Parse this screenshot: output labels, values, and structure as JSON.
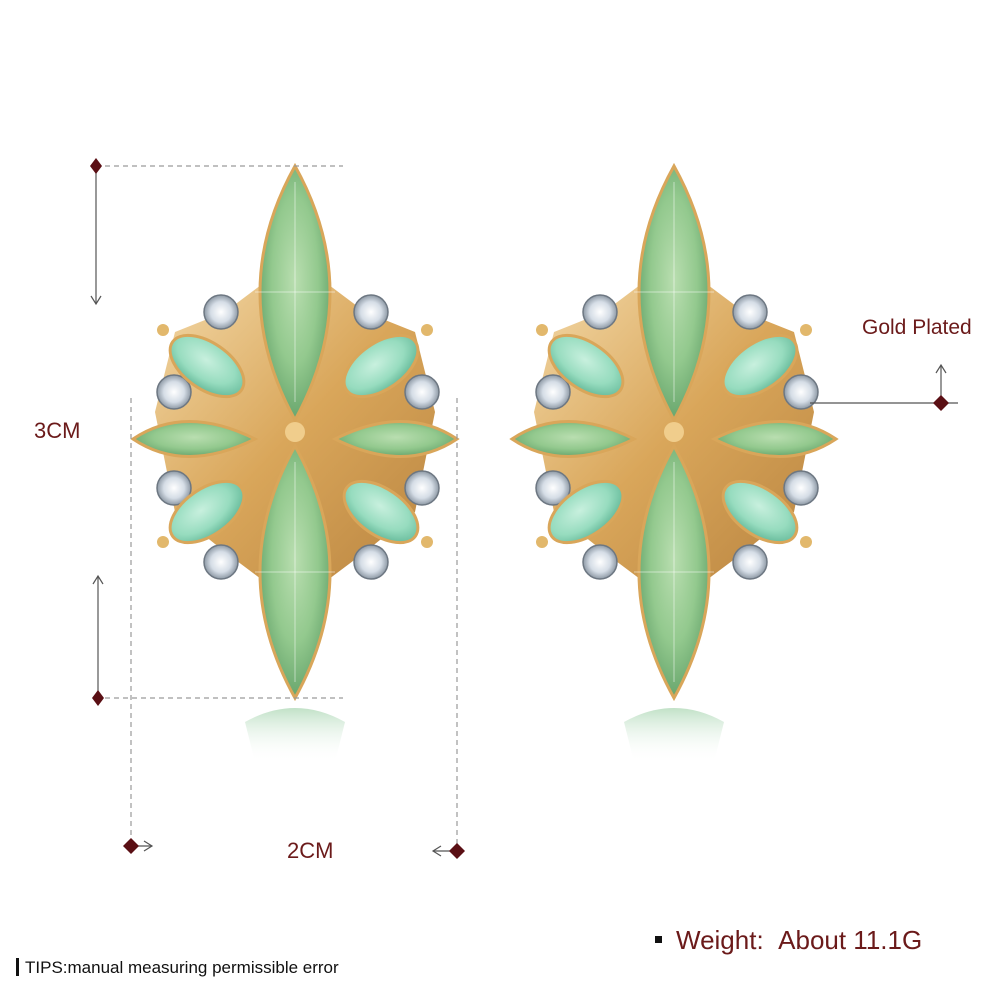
{
  "labels": {
    "height": "3CM",
    "width": "2CM",
    "plating": "Gold Plated"
  },
  "weight": {
    "label": "Weight:",
    "value": "About 11.1G"
  },
  "tips": "TIPS:manual measuring permissible error",
  "colors": {
    "label_text": "#6b1a1a",
    "guide_line": "#9a9a9a",
    "marker": "#5a0f14",
    "gold": "#d9a65a",
    "stone_light": "#a8d6a0",
    "stone_dark": "#6fae74",
    "side_stone": "#9fe0c4",
    "crystal": "#e8eef4"
  }
}
